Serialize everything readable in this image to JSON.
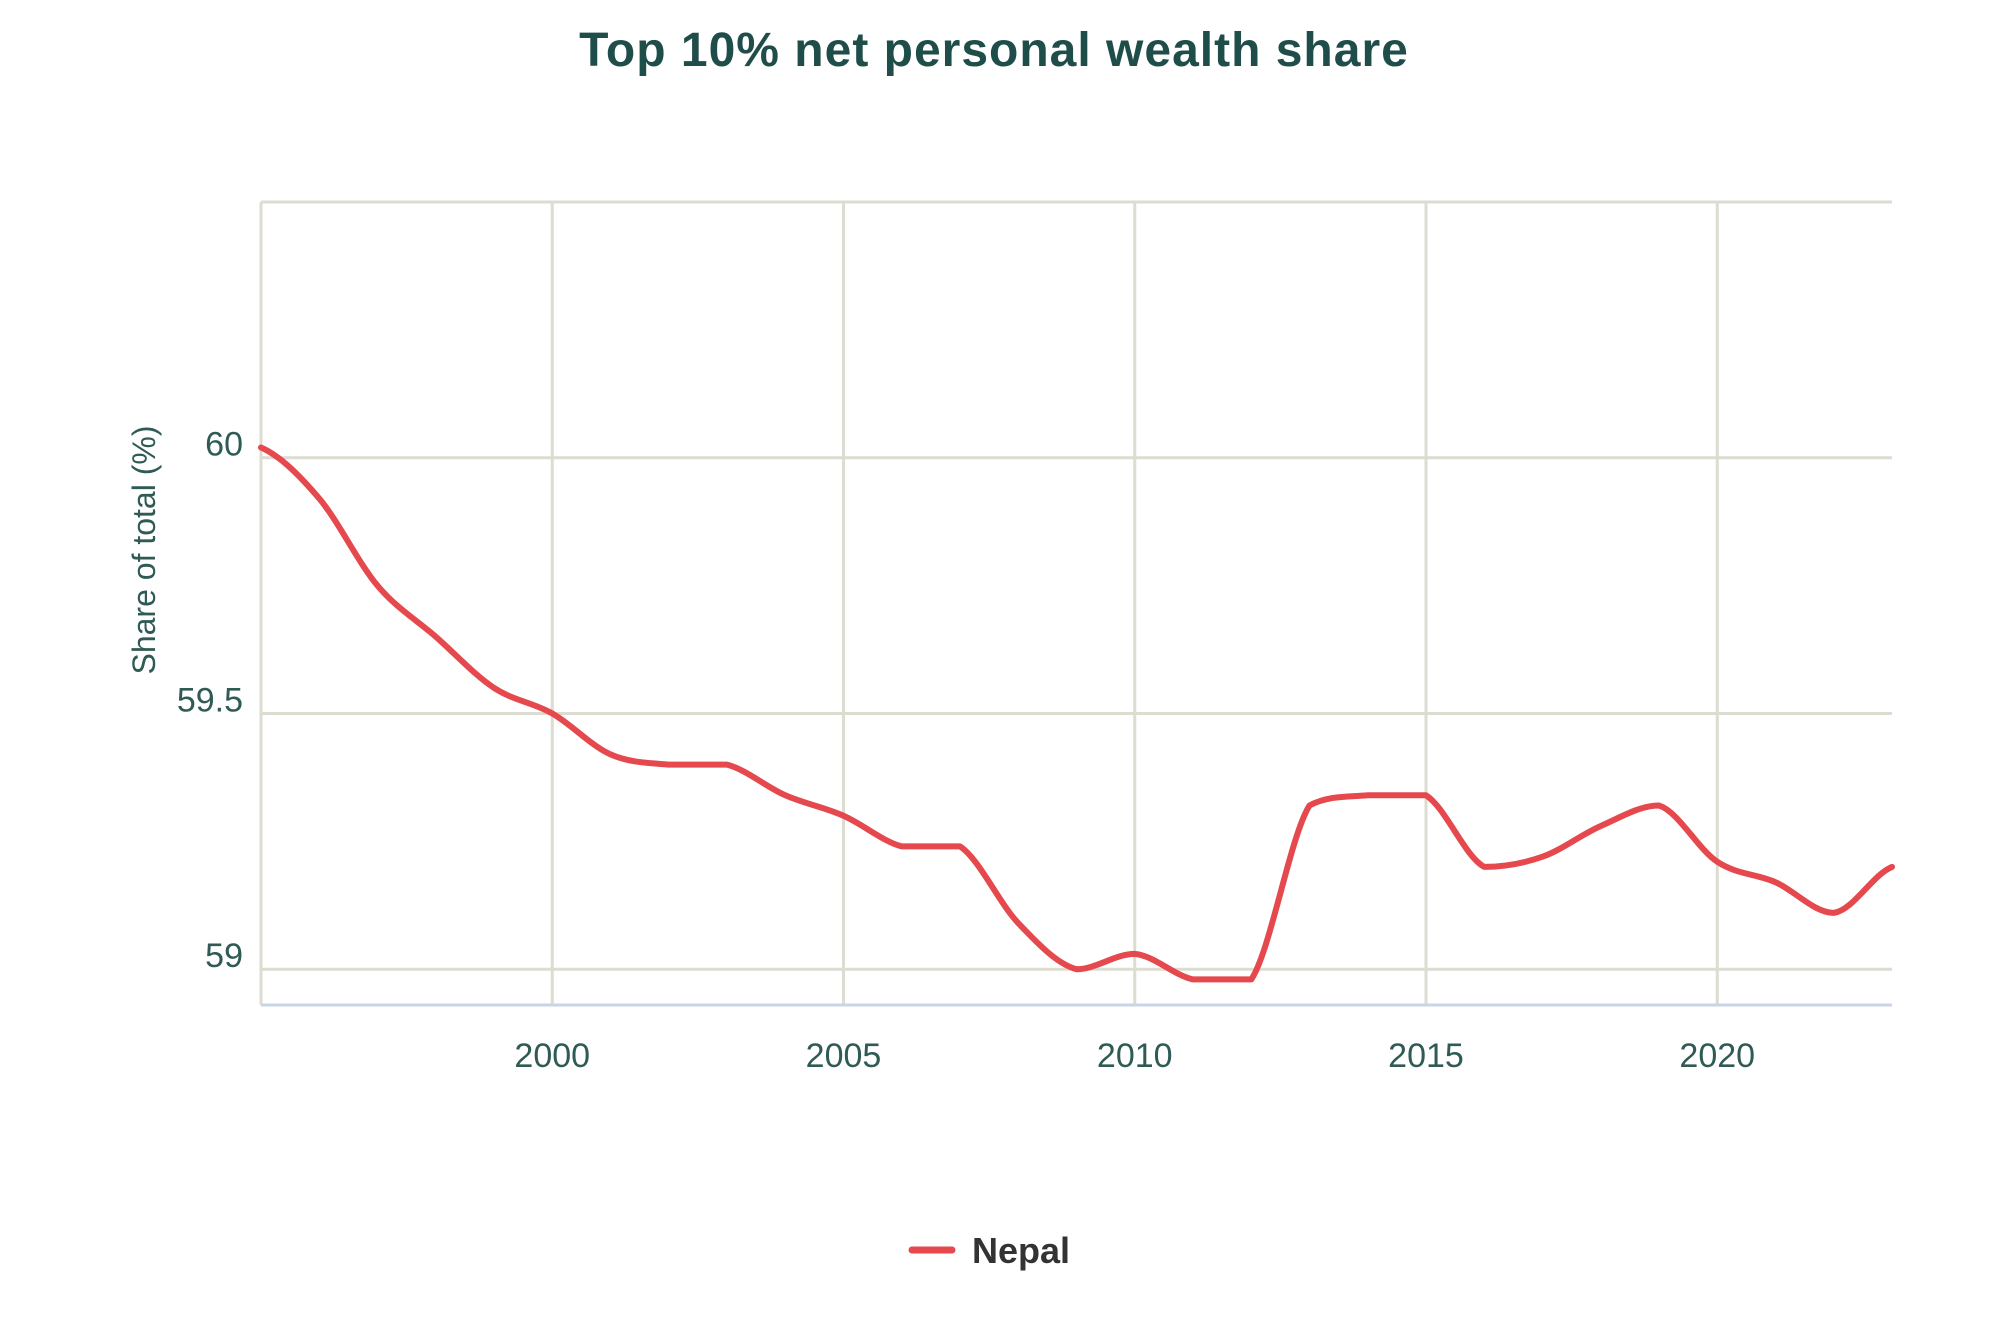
{
  "chart_data": {
    "type": "line",
    "title": "Top 10% net personal wealth share",
    "xlabel": "",
    "ylabel": "Share of total (%)",
    "xlim": [
      1995,
      2023
    ],
    "ylim": [
      58.93,
      60.5
    ],
    "x_ticks": [
      2000,
      2005,
      2010,
      2015,
      2020
    ],
    "y_ticks": [
      59,
      59.5,
      60
    ],
    "y_tick_labels": [
      "59",
      "59.5",
      "60"
    ],
    "grid": true,
    "legend_position": "bottom-center",
    "series": [
      {
        "name": "Nepal",
        "color": "#e5484d",
        "x": [
          1995,
          1996,
          1997,
          1998,
          1999,
          2000,
          2001,
          2002,
          2003,
          2004,
          2005,
          2006,
          2007,
          2008,
          2009,
          2010,
          2011,
          2012,
          2013,
          2014,
          2015,
          2016,
          2017,
          2018,
          2019,
          2020,
          2021,
          2022,
          2023
        ],
        "y": [
          60.02,
          59.92,
          59.75,
          59.65,
          59.55,
          59.5,
          59.42,
          59.4,
          59.4,
          59.34,
          59.3,
          59.24,
          59.24,
          59.09,
          59.0,
          59.03,
          58.98,
          58.98,
          59.32,
          59.34,
          59.34,
          59.2,
          59.22,
          59.28,
          59.32,
          59.21,
          59.17,
          59.11,
          59.2
        ]
      }
    ]
  }
}
